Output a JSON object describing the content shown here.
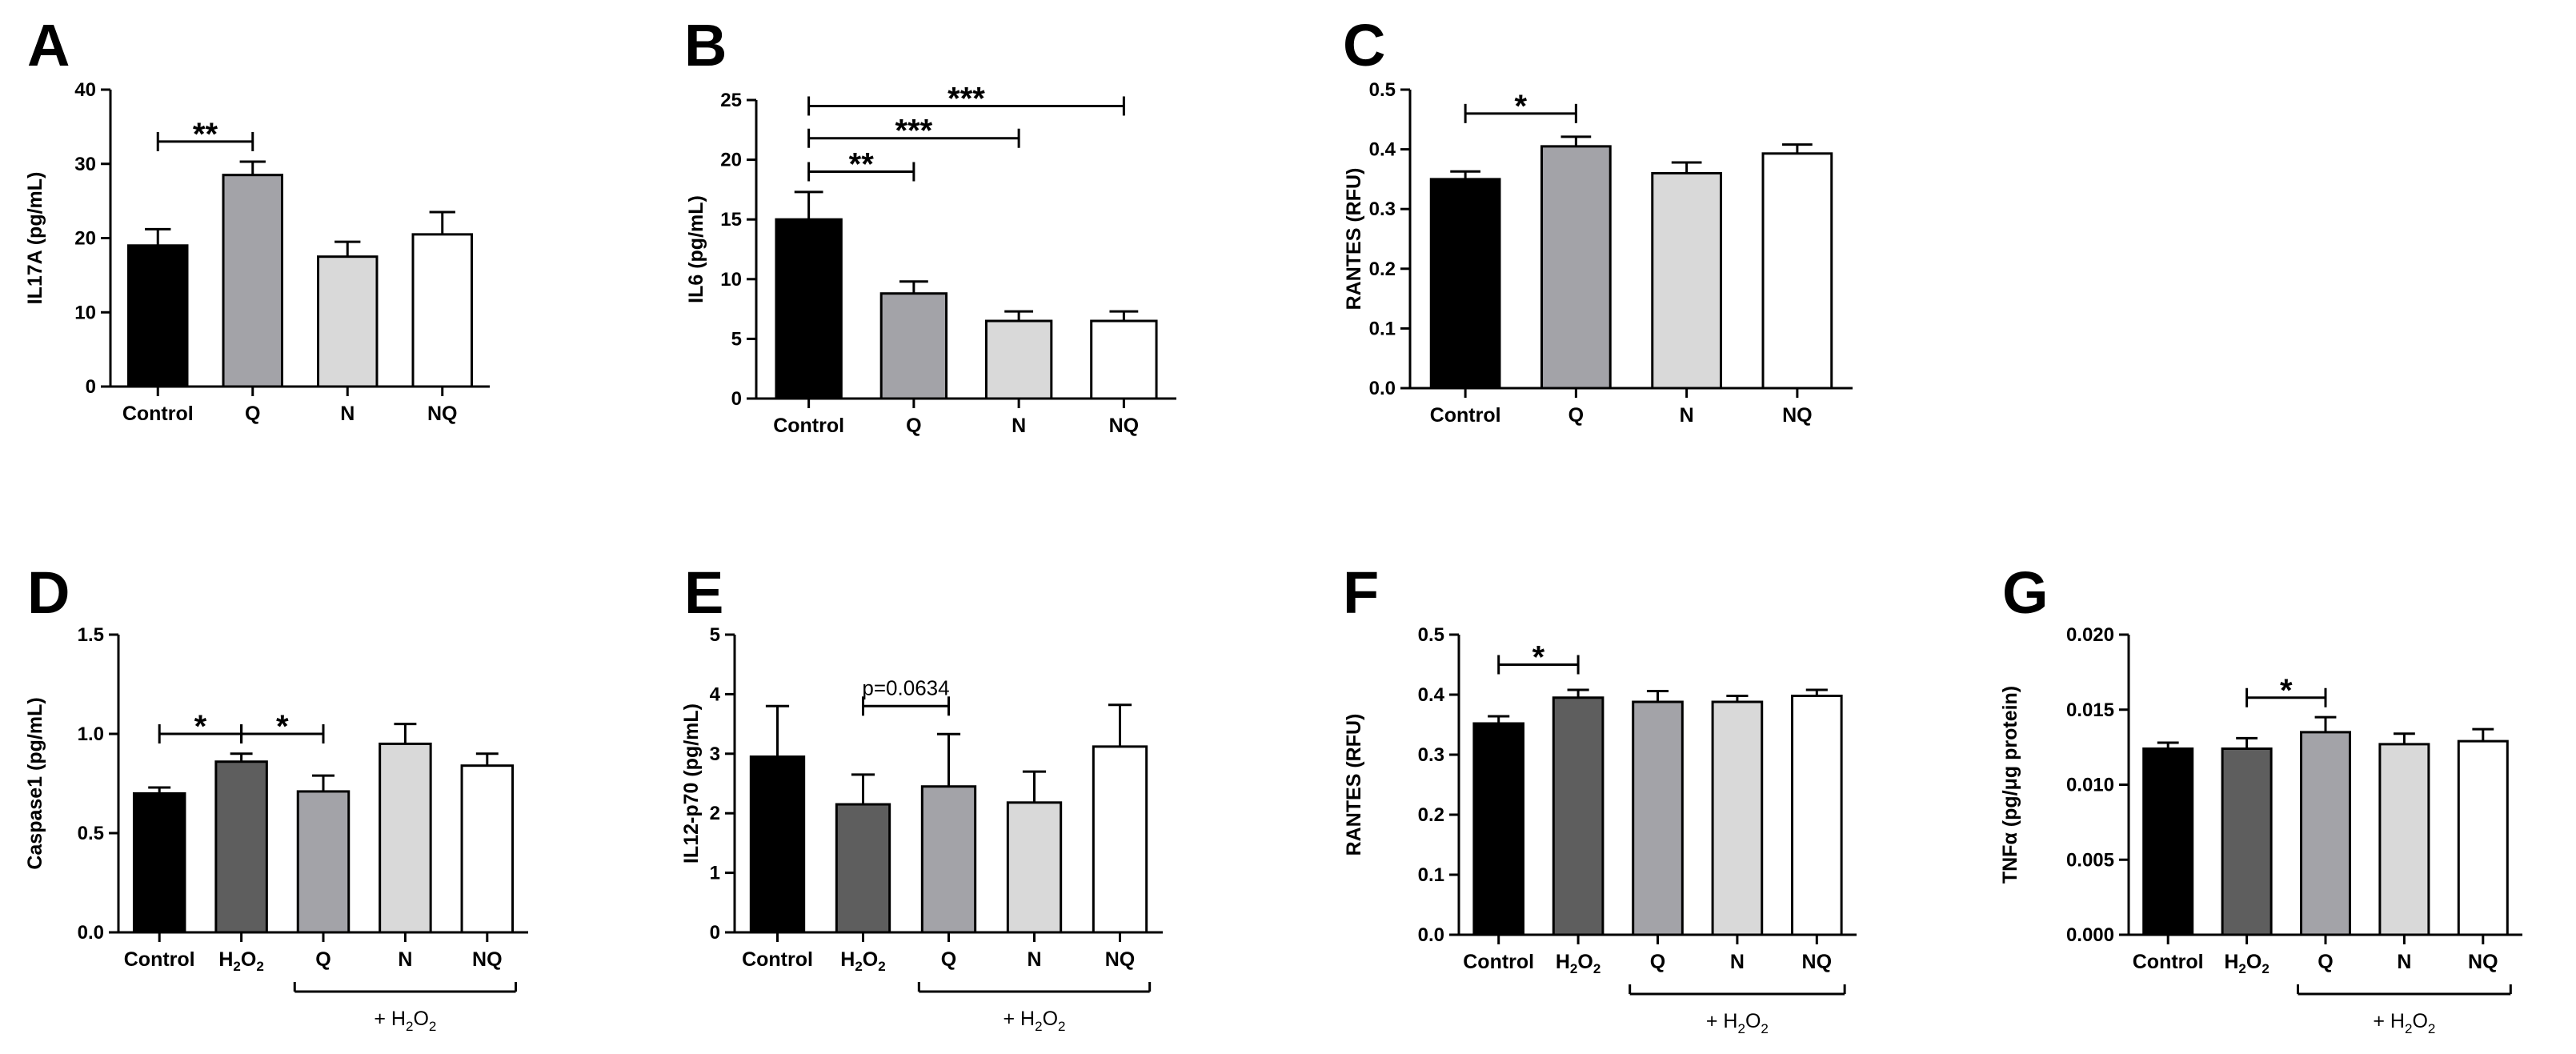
{
  "colors": {
    "black": "#000000",
    "dark_gray": "#5e5e5e",
    "medium_gray": "#a3a3a8",
    "light_gray": "#d9d9d9",
    "white": "#ffffff"
  },
  "chart_data": [
    {
      "id": "A",
      "type": "bar",
      "panel_label": "A",
      "ylabel": "IL17A (pg/mL)",
      "ylim": [
        0,
        40
      ],
      "yticks": [
        0,
        10,
        20,
        30,
        40
      ],
      "ytick_labels": [
        "0",
        "10",
        "20",
        "30",
        "40"
      ],
      "categories": [
        "Control",
        "Q",
        "N",
        "NQ"
      ],
      "values": [
        19,
        28.5,
        17.5,
        20.5
      ],
      "errors": [
        2.2,
        1.8,
        2.0,
        3.0
      ],
      "fills": [
        "black",
        "medium_gray",
        "light_gray",
        "white"
      ],
      "significance": [
        {
          "from": 0,
          "to": 1,
          "label": "**",
          "level": 33
        }
      ],
      "group_bracket": null
    },
    {
      "id": "B",
      "type": "bar",
      "panel_label": "B",
      "ylabel": "IL6 (pg/mL)",
      "ylim": [
        0,
        25
      ],
      "yticks": [
        0,
        5,
        10,
        15,
        20,
        25
      ],
      "ytick_labels": [
        "0",
        "5",
        "10",
        "15",
        "20",
        "25"
      ],
      "categories": [
        "Control",
        "Q",
        "N",
        "NQ"
      ],
      "values": [
        15,
        8.8,
        6.5,
        6.5
      ],
      "errors": [
        2.3,
        1.0,
        0.8,
        0.8
      ],
      "fills": [
        "black",
        "medium_gray",
        "light_gray",
        "white"
      ],
      "significance": [
        {
          "from": 0,
          "to": 3,
          "label": "***",
          "level": 24.5
        },
        {
          "from": 0,
          "to": 2,
          "label": "***",
          "level": 21.8
        },
        {
          "from": 0,
          "to": 1,
          "label": "**",
          "level": 19.0
        }
      ],
      "group_bracket": null
    },
    {
      "id": "C",
      "type": "bar",
      "panel_label": "C",
      "ylabel": "RANTES (RFU)",
      "ylim": [
        0,
        0.5
      ],
      "yticks": [
        0,
        0.1,
        0.2,
        0.3,
        0.4,
        0.5
      ],
      "ytick_labels": [
        "0.0",
        "0.1",
        "0.2",
        "0.3",
        "0.4",
        "0.5"
      ],
      "categories": [
        "Control",
        "Q",
        "N",
        "NQ"
      ],
      "values": [
        0.35,
        0.405,
        0.36,
        0.393
      ],
      "errors": [
        0.013,
        0.016,
        0.018,
        0.015
      ],
      "fills": [
        "black",
        "medium_gray",
        "light_gray",
        "white"
      ],
      "significance": [
        {
          "from": 0,
          "to": 1,
          "label": "*",
          "level": 0.46
        }
      ],
      "group_bracket": null
    },
    {
      "id": "D",
      "type": "bar",
      "panel_label": "D",
      "ylabel": "Caspase1 (pg/mL)",
      "ylim": [
        0,
        1.5
      ],
      "yticks": [
        0,
        0.5,
        1.0,
        1.5
      ],
      "ytick_labels": [
        "0.0",
        "0.5",
        "1.0",
        "1.5"
      ],
      "categories": [
        "Control",
        "H₂O₂",
        "Q",
        "N",
        "NQ"
      ],
      "values": [
        0.7,
        0.86,
        0.71,
        0.95,
        0.84
      ],
      "errors": [
        0.03,
        0.04,
        0.08,
        0.1,
        0.06
      ],
      "fills": [
        "black",
        "dark_gray",
        "medium_gray",
        "light_gray",
        "white"
      ],
      "significance": [
        {
          "from": 0,
          "to": 1,
          "label": "*",
          "level": 1.0
        },
        {
          "from": 1,
          "to": 2,
          "label": "*",
          "level": 1.0
        }
      ],
      "group_bracket": {
        "from": 2,
        "to": 4,
        "label": "+ H₂O₂"
      }
    },
    {
      "id": "E",
      "type": "bar",
      "panel_label": "E",
      "ylabel": "IL12-p70 (pg/mL)",
      "ylim": [
        0,
        5
      ],
      "yticks": [
        0,
        1,
        2,
        3,
        4,
        5
      ],
      "ytick_labels": [
        "0",
        "1",
        "2",
        "3",
        "4",
        "5"
      ],
      "categories": [
        "Control",
        "H₂O₂",
        "Q",
        "N",
        "NQ"
      ],
      "values": [
        2.95,
        2.15,
        2.45,
        2.18,
        3.12
      ],
      "errors": [
        0.85,
        0.5,
        0.88,
        0.52,
        0.7
      ],
      "fills": [
        "black",
        "dark_gray",
        "medium_gray",
        "light_gray",
        "white"
      ],
      "significance": [
        {
          "from": 1,
          "to": 2,
          "label": "p=0.0634",
          "level": 3.8
        }
      ],
      "group_bracket": {
        "from": 2,
        "to": 4,
        "label": "+ H₂O₂"
      }
    },
    {
      "id": "F",
      "type": "bar",
      "panel_label": "F",
      "ylabel": "RANTES (RFU)",
      "ylim": [
        0,
        0.5
      ],
      "yticks": [
        0,
        0.1,
        0.2,
        0.3,
        0.4,
        0.5
      ],
      "ytick_labels": [
        "0.0",
        "0.1",
        "0.2",
        "0.3",
        "0.4",
        "0.5"
      ],
      "categories": [
        "Control",
        "H₂O₂",
        "Q",
        "N",
        "NQ"
      ],
      "values": [
        0.352,
        0.395,
        0.388,
        0.388,
        0.398
      ],
      "errors": [
        0.012,
        0.013,
        0.018,
        0.01,
        0.01
      ],
      "fills": [
        "black",
        "dark_gray",
        "medium_gray",
        "light_gray",
        "white"
      ],
      "significance": [
        {
          "from": 0,
          "to": 1,
          "label": "*",
          "level": 0.45
        }
      ],
      "group_bracket": {
        "from": 2,
        "to": 4,
        "label": "+ H₂O₂"
      }
    },
    {
      "id": "G",
      "type": "bar",
      "panel_label": "G",
      "ylabel": "TNFα (pg/μg protein)",
      "ylim": [
        0,
        0.02
      ],
      "yticks": [
        0,
        0.005,
        0.01,
        0.015,
        0.02
      ],
      "ytick_labels": [
        "0.000",
        "0.005",
        "0.010",
        "0.015",
        "0.020"
      ],
      "categories": [
        "Control",
        "H₂O₂",
        "Q",
        "N",
        "NQ"
      ],
      "values": [
        0.0124,
        0.0124,
        0.0135,
        0.0127,
        0.0129
      ],
      "errors": [
        0.0004,
        0.0007,
        0.001,
        0.0007,
        0.0008
      ],
      "fills": [
        "black",
        "dark_gray",
        "medium_gray",
        "light_gray",
        "white"
      ],
      "significance": [
        {
          "from": 1,
          "to": 2,
          "label": "*",
          "level": 0.0158
        }
      ],
      "group_bracket": {
        "from": 2,
        "to": 4,
        "label": "+ H₂O₂"
      }
    }
  ]
}
